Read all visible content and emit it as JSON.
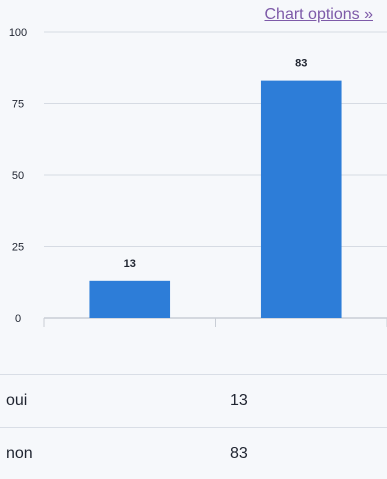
{
  "header": {
    "title": "",
    "chart_options_label": "Chart options »"
  },
  "colors": {
    "bar": "#2d7dd8",
    "grid": "#d6dbe3",
    "axis": "#c9ced6",
    "text": "#1f2430",
    "link": "#7d5aa8"
  },
  "chart_data": {
    "type": "bar",
    "title": "",
    "xlabel": "",
    "ylabel": "",
    "categories": [
      "oui",
      "non"
    ],
    "values": [
      13,
      83
    ],
    "ylim": [
      0,
      100
    ],
    "yticks": [
      0,
      25,
      50,
      75,
      100
    ],
    "data_labels": true,
    "show_category_labels": false,
    "grid": true,
    "legend": "none"
  },
  "table": {
    "rows": [
      {
        "category": "oui",
        "value": "13"
      },
      {
        "category": "non",
        "value": "83"
      }
    ]
  }
}
